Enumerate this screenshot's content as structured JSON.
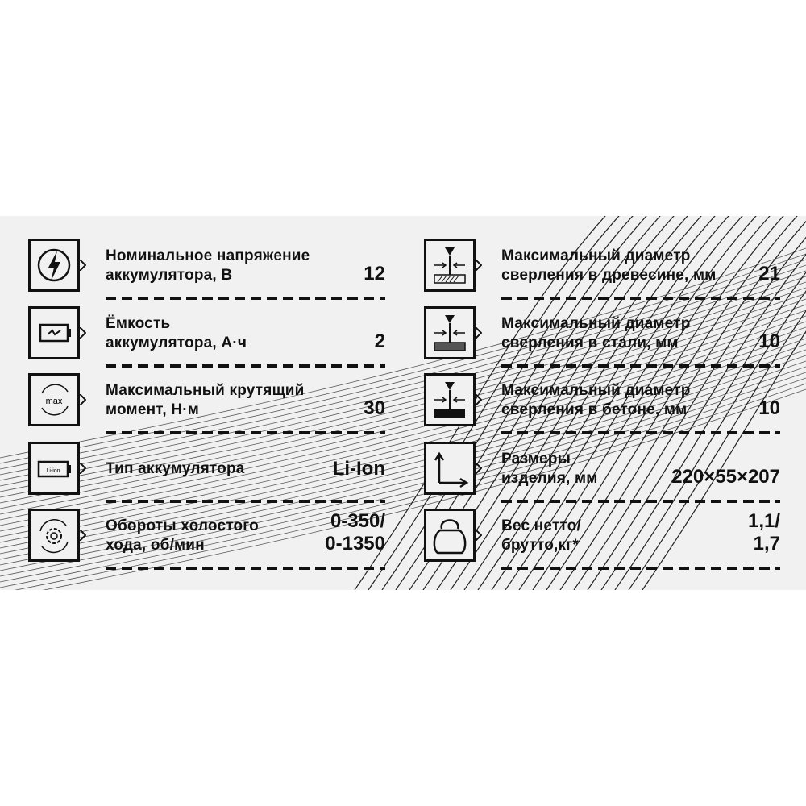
{
  "left_specs": [
    {
      "icon": "lightning-icon",
      "label_lines": [
        "Номинальное напряжение",
        "аккумулятора, В"
      ],
      "value_lines": [
        "12"
      ]
    },
    {
      "icon": "battery-charge-icon",
      "label_lines": [
        "Ёмкость",
        "аккумулятора, А·ч"
      ],
      "value_lines": [
        "2"
      ]
    },
    {
      "icon": "max-torque-icon",
      "icon_text": "max",
      "label_lines": [
        "Максимальный крутящий",
        "момент, Н·м"
      ],
      "value_lines": [
        "30"
      ]
    },
    {
      "icon": "li-ion-battery-icon",
      "icon_text": "Li-ion",
      "label_lines": [
        "Тип аккумулятора"
      ],
      "value_lines": [
        "Li-Ion"
      ]
    },
    {
      "icon": "gear-rotation-icon",
      "label_lines": [
        "Обороты холостого",
        "хода, об/мин"
      ],
      "value_lines": [
        "0-350/",
        "0-1350"
      ]
    }
  ],
  "right_specs": [
    {
      "icon": "drill-wood-icon",
      "label_lines": [
        "Максимальный диаметр",
        "сверления в древесине, мм"
      ],
      "value_lines": [
        "21"
      ]
    },
    {
      "icon": "drill-steel-icon",
      "label_lines": [
        "Максимальный диаметр",
        "сверления в стали, мм"
      ],
      "value_lines": [
        "10"
      ]
    },
    {
      "icon": "drill-concrete-icon",
      "label_lines": [
        "Максимальный диаметр",
        "сверления в бетоне, мм"
      ],
      "value_lines": [
        "10"
      ]
    },
    {
      "icon": "dimensions-icon",
      "label_lines": [
        "Размеры",
        "изделия, мм"
      ],
      "value_lines": [
        "220×55×207"
      ]
    },
    {
      "icon": "kettlebell-weight-icon",
      "label_lines": [
        "Вес нетто/",
        "брутто,кг*"
      ],
      "value_lines": [
        "1,1/",
        "1,7"
      ]
    }
  ]
}
